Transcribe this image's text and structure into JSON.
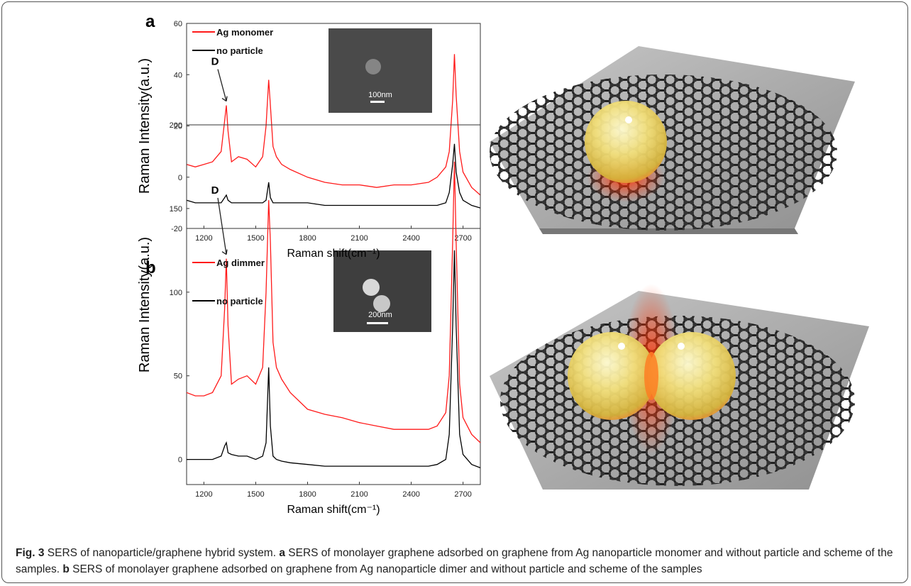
{
  "chart_data": [
    {
      "type": "line",
      "panel": "a",
      "y_label": "Raman Intensity(a.u.)",
      "x_label": "Raman shift(cm⁻¹)",
      "annotation": "D",
      "inset_label": "100nm",
      "xlim": [
        1100,
        2800
      ],
      "xticks": [
        1200,
        1500,
        1800,
        2100,
        2400,
        2700
      ],
      "ylim": [
        -20,
        60
      ],
      "yticks": [
        -20,
        0,
        20,
        40,
        60
      ],
      "x": [
        1100,
        1150,
        1200,
        1250,
        1300,
        1320,
        1330,
        1340,
        1360,
        1400,
        1450,
        1500,
        1540,
        1560,
        1575,
        1585,
        1600,
        1620,
        1650,
        1700,
        1800,
        1900,
        2000,
        2100,
        2200,
        2300,
        2400,
        2500,
        2550,
        2600,
        2620,
        2640,
        2650,
        2660,
        2680,
        2700,
        2750,
        2800
      ],
      "series": [
        {
          "name": "Ag monomer",
          "color": "#ff1a1a",
          "values": [
            5,
            4,
            5,
            6,
            10,
            22,
            28,
            18,
            6,
            8,
            7,
            4,
            8,
            20,
            38,
            28,
            12,
            8,
            5,
            3,
            0,
            -2,
            -3,
            -3,
            -4,
            -3,
            -3,
            -2,
            0,
            4,
            10,
            30,
            48,
            32,
            10,
            2,
            -4,
            -7
          ]
        },
        {
          "name": "no  particle",
          "color": "#000000",
          "values": [
            -9,
            -10,
            -10,
            -10,
            -10,
            -8,
            -7,
            -9,
            -10,
            -10,
            -10,
            -10,
            -10,
            -9,
            -2,
            -8,
            -10,
            -10,
            -10,
            -10,
            -10,
            -11,
            -11,
            -11,
            -11,
            -11,
            -11,
            -11,
            -11,
            -10,
            -6,
            5,
            13,
            2,
            -6,
            -9,
            -11,
            -12
          ]
        }
      ]
    },
    {
      "type": "line",
      "panel": "b",
      "y_label": "Raman Intensity(a.u.)",
      "x_label": "Raman shift(cm⁻¹)",
      "annotation": "D",
      "inset_label": "200nm",
      "xlim": [
        1100,
        2800
      ],
      "xticks": [
        1200,
        1500,
        1800,
        2100,
        2400,
        2700
      ],
      "ylim": [
        -15,
        200
      ],
      "yticks": [
        0,
        50,
        100,
        150,
        200
      ],
      "x": [
        1100,
        1150,
        1200,
        1250,
        1300,
        1320,
        1330,
        1340,
        1360,
        1400,
        1450,
        1500,
        1540,
        1560,
        1575,
        1585,
        1600,
        1620,
        1650,
        1700,
        1800,
        1900,
        2000,
        2100,
        2200,
        2300,
        2400,
        2500,
        2550,
        2600,
        2620,
        2640,
        2650,
        2660,
        2680,
        2700,
        2750,
        2800
      ],
      "series": [
        {
          "name": "Ag dimmer",
          "color": "#ff1a1a",
          "values": [
            40,
            38,
            38,
            40,
            50,
            90,
            120,
            80,
            45,
            48,
            50,
            45,
            55,
            100,
            155,
            130,
            70,
            55,
            48,
            40,
            30,
            27,
            25,
            22,
            20,
            18,
            18,
            18,
            20,
            28,
            50,
            130,
            178,
            130,
            45,
            25,
            15,
            10
          ]
        },
        {
          "name": "no  particle",
          "color": "#000000",
          "values": [
            0,
            0,
            0,
            0,
            2,
            8,
            10,
            4,
            3,
            2,
            2,
            0,
            2,
            10,
            55,
            20,
            2,
            0,
            -1,
            -2,
            -3,
            -4,
            -4,
            -4,
            -4,
            -4,
            -4,
            -4,
            -3,
            0,
            15,
            80,
            125,
            80,
            15,
            3,
            -3,
            -5
          ]
        }
      ]
    }
  ],
  "caption": {
    "label": "Fig. 3",
    "title": "SERS of nanoparticle/graphene hybrid system.",
    "parts": [
      {
        "label": "a",
        "text": "SERS of monolayer graphene adsorbed on graphene from Ag nanoparticle monomer and without particle and scheme of the samples."
      },
      {
        "label": "b",
        "text": "SERS of monolayer graphene adsorbed on graphene from Ag nanoparticle dimer and without particle and scheme of the samples"
      }
    ]
  }
}
